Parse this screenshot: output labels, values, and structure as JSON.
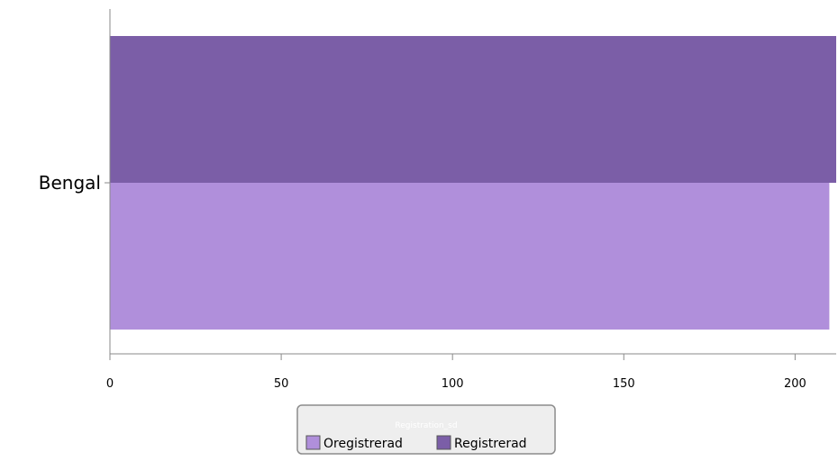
{
  "chart_data": {
    "type": "bar",
    "orientation": "horizontal",
    "categories": [
      "Bengal"
    ],
    "series": [
      {
        "name": "Oregistrerad",
        "values": [
          210
        ],
        "color": "#b08fdb"
      },
      {
        "name": "Registrerad",
        "values": [
          212
        ],
        "color": "#7b5ea7"
      }
    ],
    "xlim": [
      0,
      212
    ],
    "x_ticks": [
      0,
      50,
      100,
      150,
      200
    ],
    "title": "",
    "xlabel": "",
    "ylabel": "",
    "grid": false,
    "legend": {
      "title": "Registration_sd",
      "position": "bottom-center",
      "order": [
        "Oregistrerad",
        "Registrerad"
      ]
    }
  }
}
